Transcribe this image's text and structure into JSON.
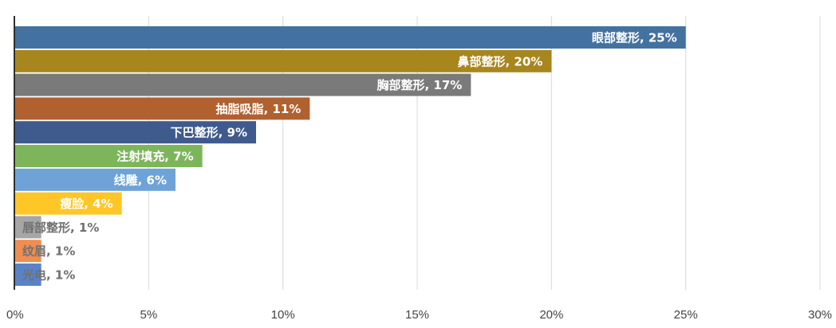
{
  "chart_data": {
    "type": "bar",
    "orientation": "horizontal",
    "categories": [
      "眼部整形",
      "鼻部整形",
      "胸部整形",
      "抽脂吸脂",
      "下巴整形",
      "注射填充",
      "线雕",
      "瘦脸",
      "唇部整形",
      "纹眉",
      "光电"
    ],
    "values": [
      25,
      20,
      17,
      11,
      9,
      7,
      6,
      4,
      1,
      1,
      1
    ],
    "value_unit": "%",
    "labels": [
      "眼部整形, 25%",
      "鼻部整形, 20%",
      "胸部整形, 17%",
      "抽脂吸脂, 11%",
      "下巴整形, 9%",
      "注射填充, 7%",
      "线雕, 6%",
      "瘦脸, 4%",
      "唇部整形, 1%",
      "纹眉, 1%",
      "光电, 1%"
    ],
    "colors": [
      "#4472A0",
      "#A8861E",
      "#7A7A7A",
      "#B0612F",
      "#3F5A8C",
      "#7DB55B",
      "#6FA3D8",
      "#FFC628",
      "#A6A6A6",
      "#EF8E4F",
      "#5A82C8"
    ],
    "label_colors": [
      "#ffffff",
      "#ffffff",
      "#ffffff",
      "#ffffff",
      "#ffffff",
      "#ffffff",
      "#ffffff",
      "#ffffff",
      "#707070",
      "#707070",
      "#707070"
    ],
    "xlim": [
      0,
      30
    ],
    "xticks": [
      "0%",
      "5%",
      "10%",
      "15%",
      "20%",
      "25%",
      "30%"
    ],
    "xtick_values": [
      0,
      5,
      10,
      15,
      20,
      25,
      30
    ],
    "grid": true,
    "legend": "none",
    "title": "",
    "xlabel": "",
    "ylabel": ""
  }
}
